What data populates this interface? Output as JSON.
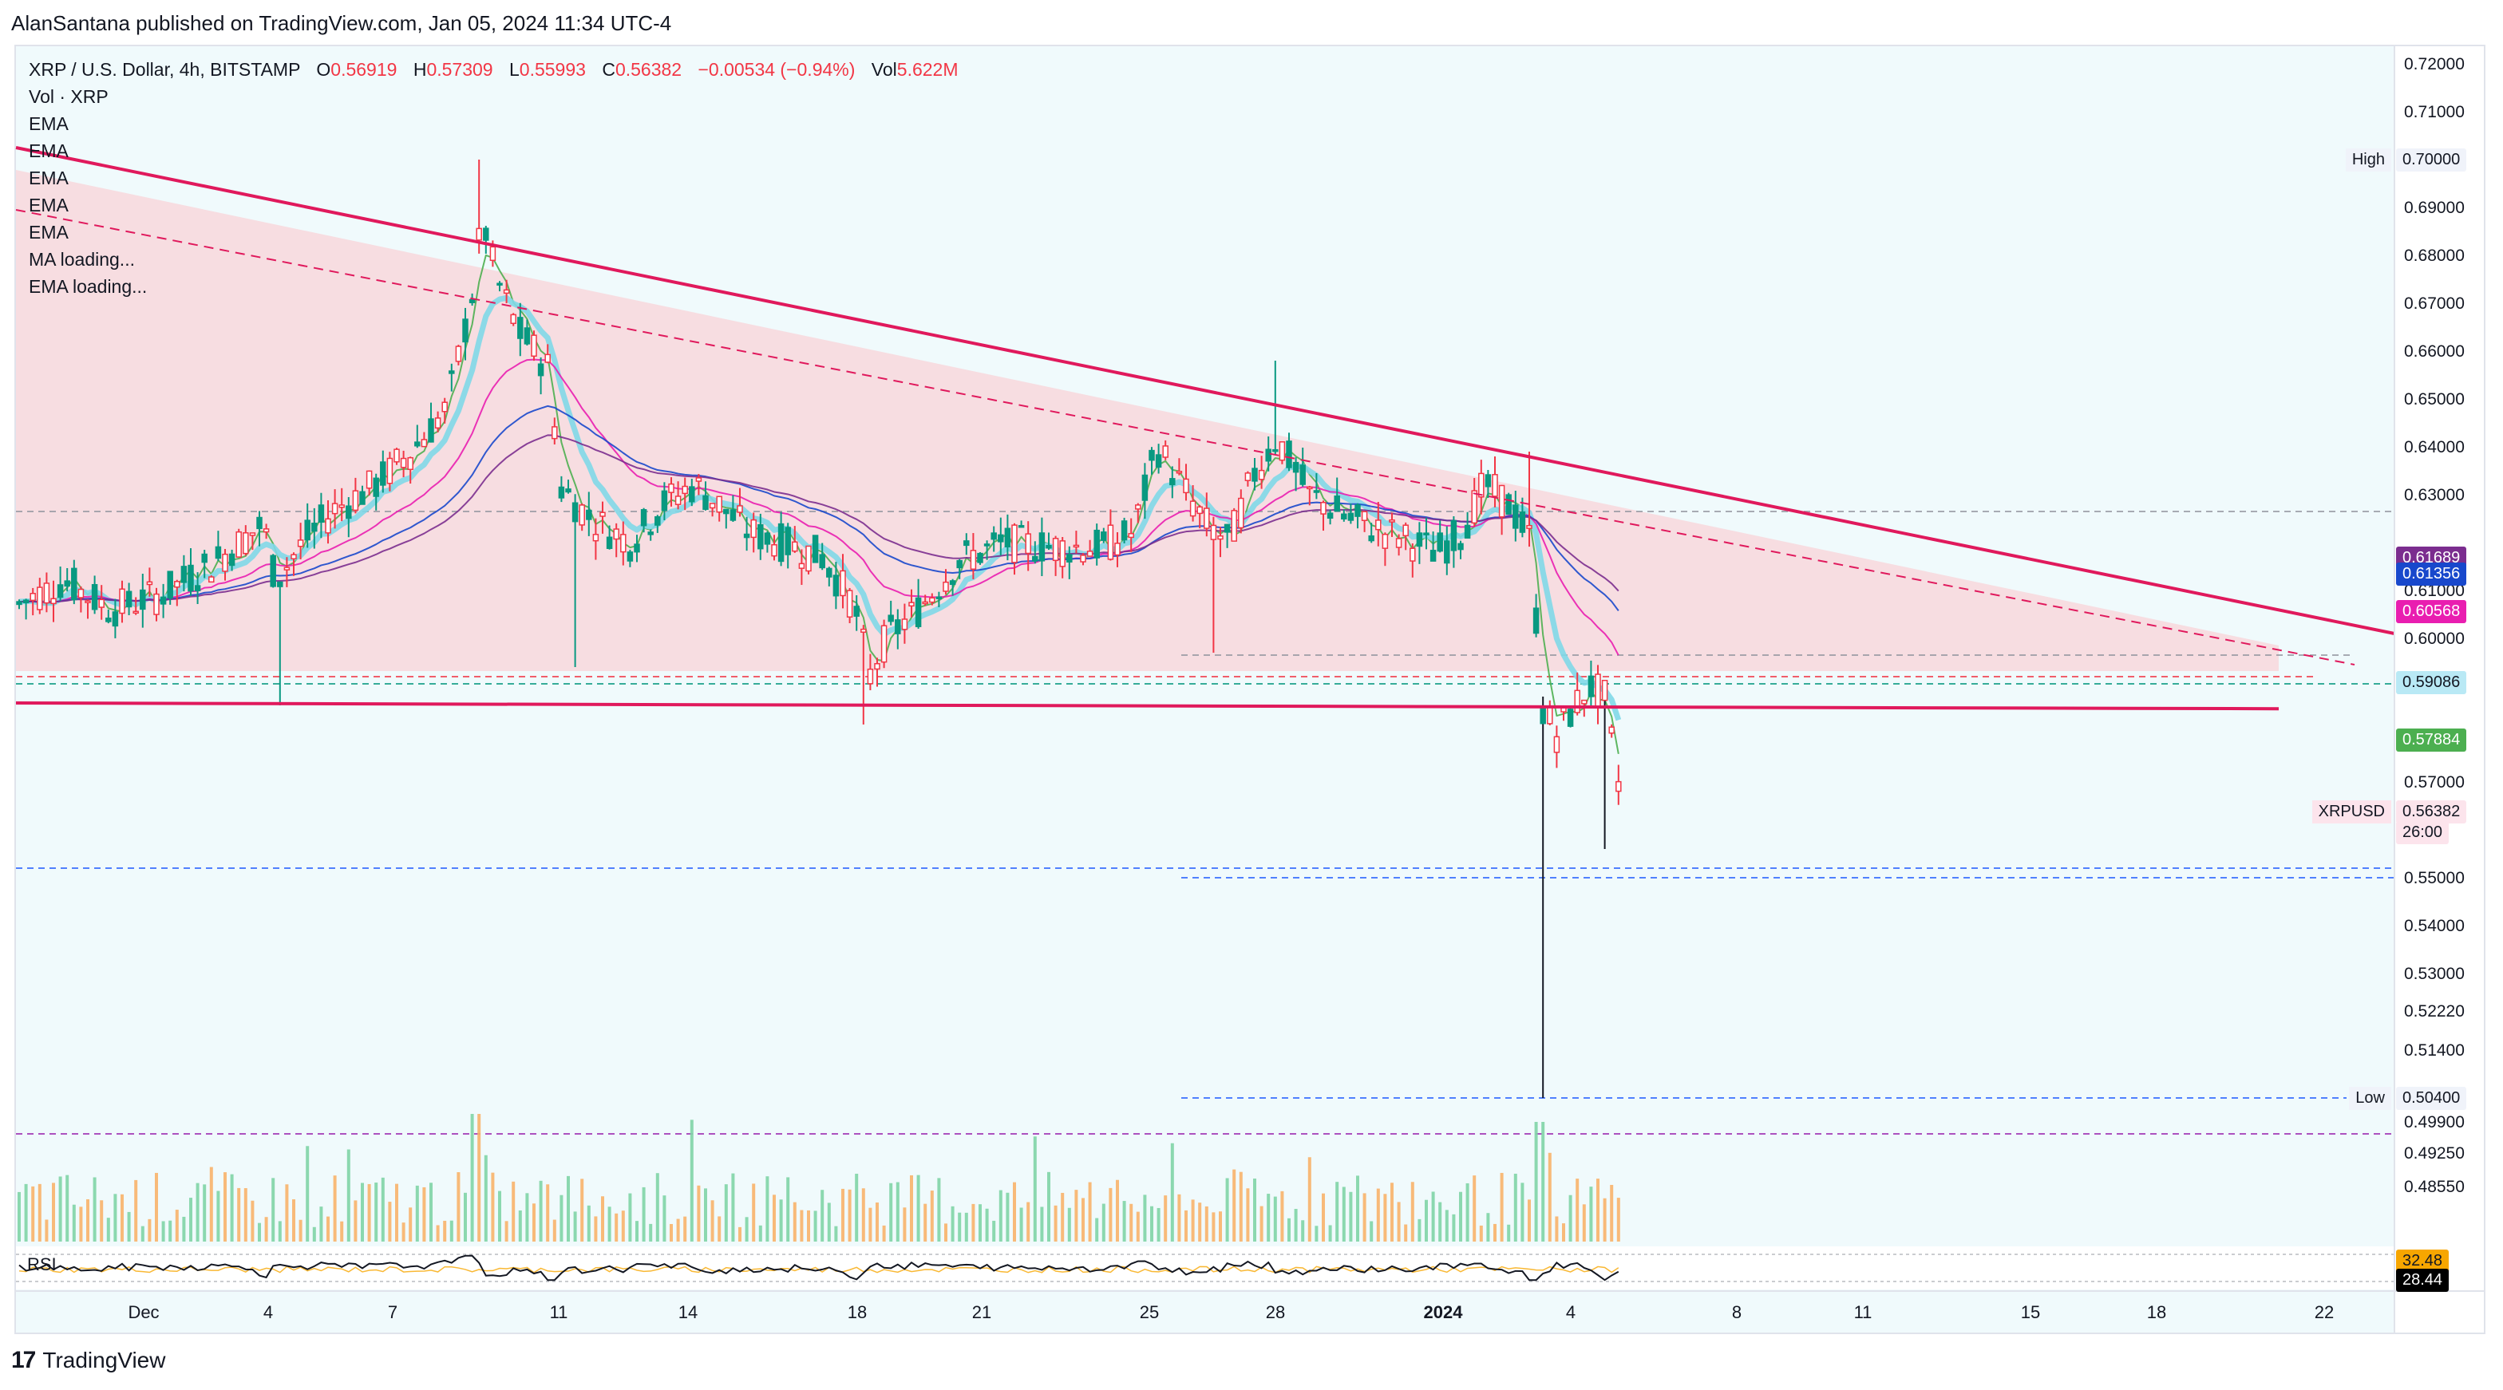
{
  "header": "AlanSantana published on TradingView.com, Jan 05, 2024 11:34 UTC-4",
  "footer": {
    "logo": "17",
    "brand": "TradingView"
  },
  "legend": {
    "symbol": "XRP / U.S. Dollar, 4h, BITSTAMP",
    "o_label": "O",
    "o": "0.56919",
    "h_label": "H",
    "h": "0.57309",
    "l_label": "L",
    "l": "0.55993",
    "c_label": "C",
    "c": "0.56382",
    "change": "−0.00534 (−0.94%)",
    "vol_label": "Vol",
    "vol": "5.622M",
    "rows": [
      "Vol · XRP",
      "EMA",
      "EMA",
      "EMA",
      "EMA",
      "EMA",
      "MA loading...",
      "EMA loading..."
    ]
  },
  "price_axis": {
    "ticks": [
      {
        "v": 0.72,
        "t": "0.72000"
      },
      {
        "v": 0.71,
        "t": "0.71000"
      },
      {
        "v": 0.69,
        "t": "0.69000"
      },
      {
        "v": 0.68,
        "t": "0.68000"
      },
      {
        "v": 0.67,
        "t": "0.67000"
      },
      {
        "v": 0.66,
        "t": "0.66000"
      },
      {
        "v": 0.65,
        "t": "0.65000"
      },
      {
        "v": 0.64,
        "t": "0.64000"
      },
      {
        "v": 0.63,
        "t": "0.63000"
      },
      {
        "v": 0.61,
        "t": "0.61000"
      },
      {
        "v": 0.6,
        "t": "0.60000"
      },
      {
        "v": 0.57,
        "t": "0.57000"
      },
      {
        "v": 0.55,
        "t": "0.55000"
      },
      {
        "v": 0.54,
        "t": "0.54000"
      },
      {
        "v": 0.53,
        "t": "0.53000"
      },
      {
        "v": 0.5222,
        "t": "0.52220"
      },
      {
        "v": 0.514,
        "t": "0.51400"
      },
      {
        "v": 0.499,
        "t": "0.49900"
      },
      {
        "v": 0.4925,
        "t": "0.49250"
      },
      {
        "v": 0.4855,
        "t": "0.48550"
      }
    ],
    "markers": [
      {
        "v": 0.7,
        "t": "0.70000",
        "label": "High",
        "bg": "#f0f3fa",
        "fg": "#131722"
      },
      {
        "v": 0.61689,
        "t": "0.61689",
        "bg": "#7b2d8f",
        "fg": "#ffffff"
      },
      {
        "v": 0.61356,
        "t": "0.61356",
        "bg": "#1848cc",
        "fg": "#ffffff"
      },
      {
        "v": 0.60568,
        "t": "0.60568",
        "bg": "#e91eb0",
        "fg": "#ffffff"
      },
      {
        "v": 0.59086,
        "t": "0.59086",
        "bg": "#b9e9f5",
        "fg": "#131722"
      },
      {
        "v": 0.57884,
        "t": "0.57884",
        "bg": "#4caf50",
        "fg": "#ffffff"
      },
      {
        "v": 0.56382,
        "t": "0.56382",
        "label": "XRPUSD",
        "sub": "26:00",
        "bg": "#fce4ec",
        "fg": "#131722"
      },
      {
        "v": 0.504,
        "t": "0.50400",
        "label": "Low",
        "bg": "#f0f3fa",
        "fg": "#131722"
      }
    ]
  },
  "rsi": {
    "label": "RSI",
    "values": [
      "32.48",
      "28.44"
    ],
    "colors": [
      "#f7a600",
      "#000000"
    ]
  },
  "time_axis": [
    "Dec",
    "4",
    "7",
    "11",
    "14",
    "18",
    "21",
    "25",
    "28",
    "2024",
    "4",
    "8",
    "11",
    "15",
    "18",
    "22"
  ],
  "chart_data": {
    "type": "candlestick",
    "title": "XRP / U.S. Dollar, 4h, BITSTAMP",
    "ylim": [
      0.48,
      0.722
    ],
    "x_ticks": [
      "Dec",
      "4",
      "7",
      "11",
      "14",
      "18",
      "21",
      "25",
      "28",
      "2024",
      "4",
      "8",
      "11",
      "15",
      "18",
      "22"
    ],
    "ohlc_last": {
      "open": 0.56919,
      "high": 0.57309,
      "low": 0.55993,
      "close": 0.56382
    },
    "period_high": 0.7,
    "period_low": 0.504,
    "trendlines": {
      "descending_resistance": [
        [
          0,
          0.7025
        ],
        [
          1,
          0.601
        ]
      ],
      "horizontal_support": 0.5865
    },
    "levels": [
      0.6265,
      0.5965,
      0.552,
      0.4965
    ]
  },
  "colors": {
    "up": "#089981",
    "down": "#f23645",
    "resistance": "#e0195c",
    "zone": "#f8d7dc",
    "bg": "#f0fafc"
  }
}
